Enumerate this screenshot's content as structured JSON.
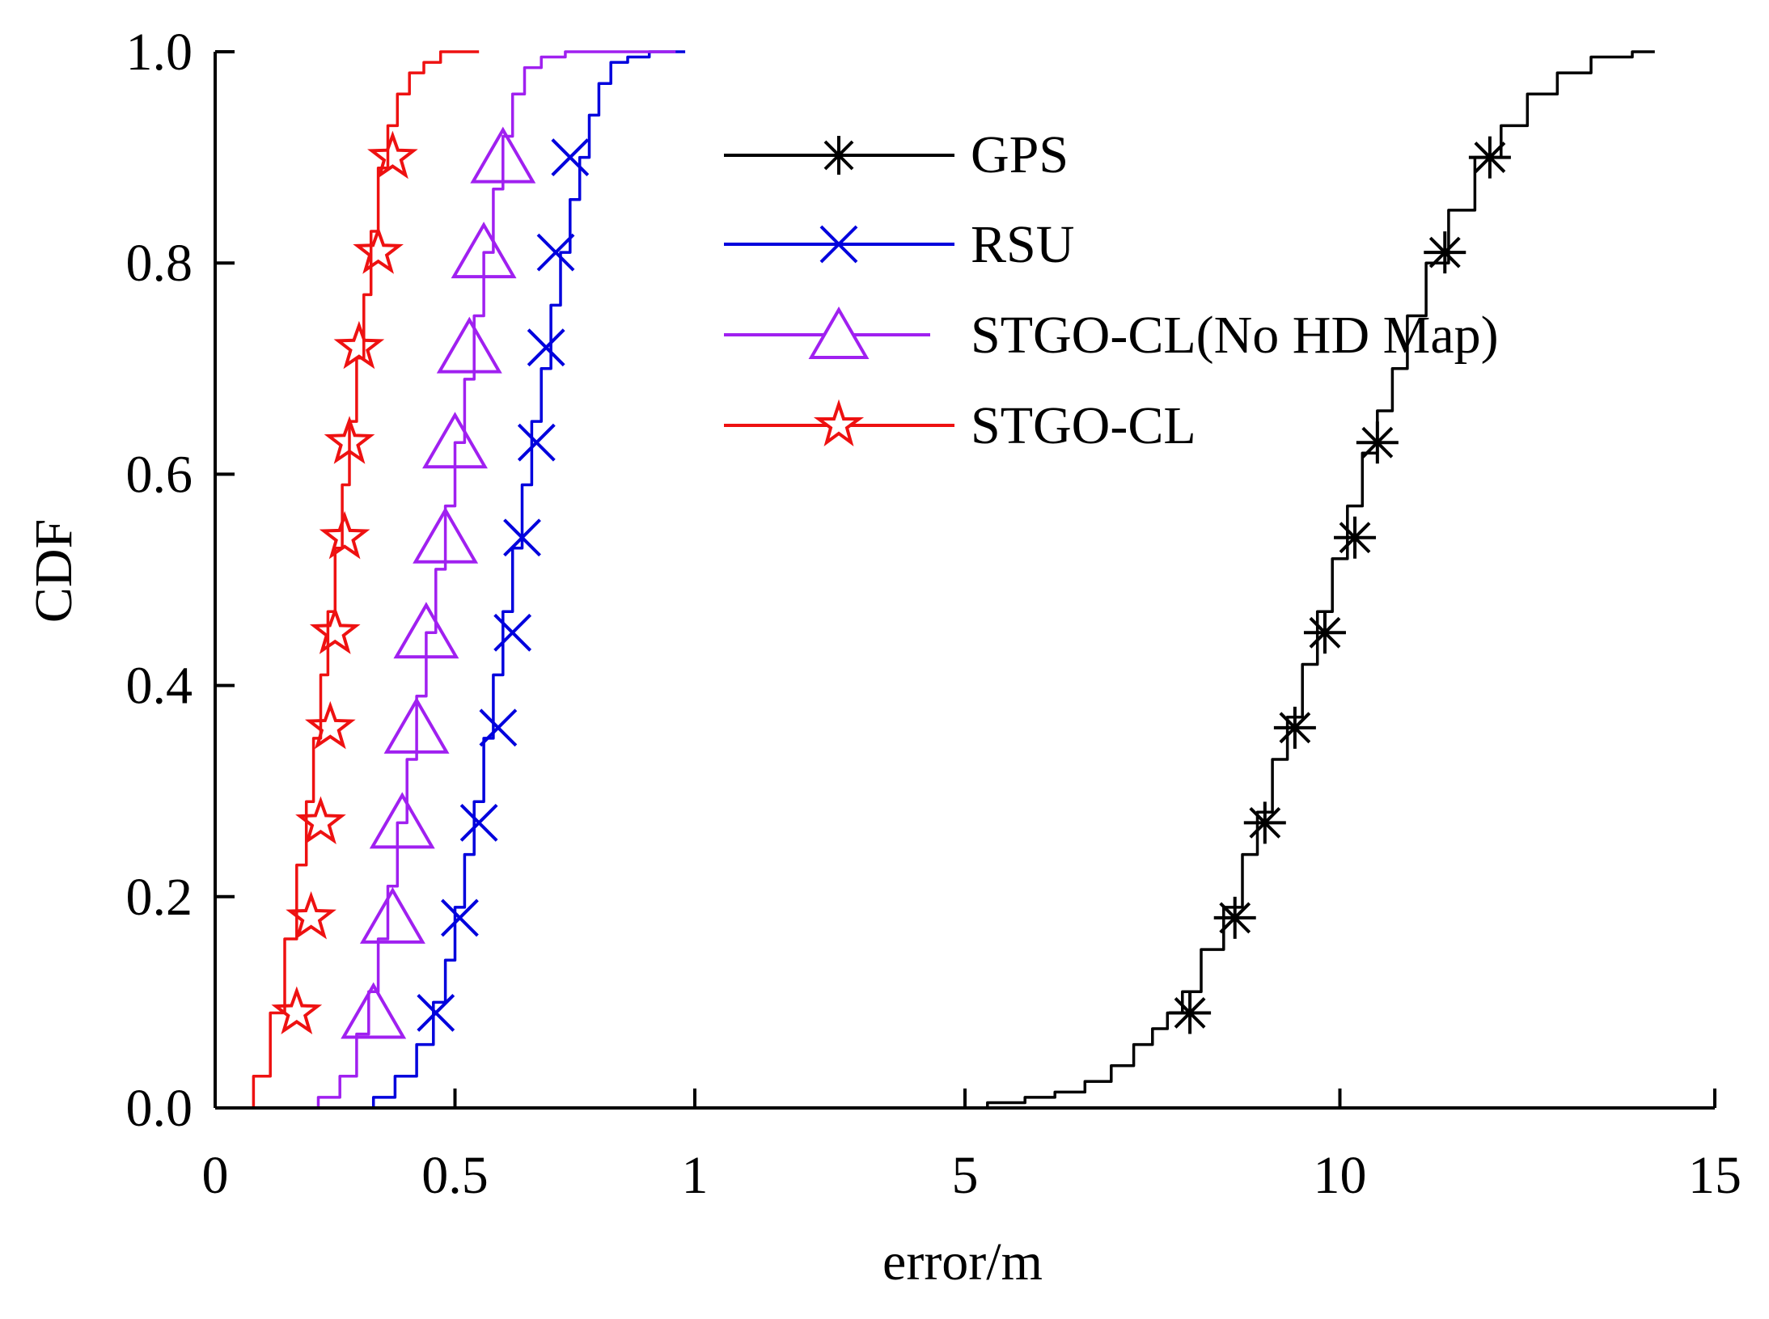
{
  "chart_data": {
    "type": "line",
    "xlabel": "error/m",
    "ylabel": "CDF",
    "x_axis": {
      "scale": "piecewise-linear",
      "segments": [
        {
          "from": 0,
          "to": 1
        },
        {
          "from": 1,
          "to": 5,
          "note": "compressed"
        },
        {
          "from": 5,
          "to": 15
        }
      ],
      "ticks": [
        0,
        0.5,
        1,
        5,
        10,
        15
      ],
      "tick_labels": [
        "0",
        "0.5",
        "1",
        "5",
        "10",
        "15"
      ]
    },
    "y_axis": {
      "range": [
        0,
        1
      ],
      "ticks": [
        0,
        0.2,
        0.4,
        0.6,
        0.8,
        1.0
      ],
      "tick_labels": [
        "0.0",
        "0.2",
        "0.4",
        "0.6",
        "0.8",
        "1.0"
      ]
    },
    "grid": false,
    "legend_position": "top-center",
    "series": [
      {
        "name": "GPS",
        "color": "#000000",
        "marker": "asterisk",
        "x": [
          5.0,
          5.6,
          6.0,
          6.4,
          6.8,
          7.1,
          7.4,
          7.6,
          7.8,
          8.0,
          8.3,
          8.6,
          8.8,
          9.0,
          9.2,
          9.4,
          9.6,
          9.8,
          10.0,
          10.2,
          10.4,
          10.6,
          10.8,
          11.0,
          11.3,
          11.6,
          12.0,
          12.3,
          12.7,
          13.1,
          13.6,
          14.2
        ],
        "y": [
          0.0,
          0.005,
          0.01,
          0.015,
          0.025,
          0.04,
          0.06,
          0.075,
          0.09,
          0.11,
          0.15,
          0.19,
          0.24,
          0.28,
          0.33,
          0.37,
          0.42,
          0.47,
          0.52,
          0.57,
          0.62,
          0.66,
          0.7,
          0.75,
          0.8,
          0.85,
          0.9,
          0.93,
          0.96,
          0.98,
          0.995,
          1.0
        ],
        "marker_x": [
          8.0,
          8.6,
          9.0,
          9.4,
          9.8,
          10.2,
          10.5,
          11.4,
          12.0
        ],
        "marker_y": [
          0.09,
          0.18,
          0.27,
          0.36,
          0.45,
          0.54,
          0.63,
          0.81,
          0.9
        ]
      },
      {
        "name": "RSU",
        "color": "#0000dd",
        "marker": "x",
        "x": [
          0.31,
          0.35,
          0.4,
          0.44,
          0.47,
          0.49,
          0.51,
          0.53,
          0.55,
          0.57,
          0.59,
          0.61,
          0.63,
          0.65,
          0.67,
          0.69,
          0.71,
          0.73,
          0.75,
          0.77,
          0.79,
          0.81,
          0.84,
          0.88,
          0.93,
          0.98
        ],
        "y": [
          0.0,
          0.01,
          0.03,
          0.06,
          0.1,
          0.14,
          0.19,
          0.24,
          0.29,
          0.35,
          0.41,
          0.47,
          0.53,
          0.59,
          0.65,
          0.7,
          0.76,
          0.81,
          0.86,
          0.9,
          0.94,
          0.97,
          0.99,
          0.995,
          1.0,
          1.0
        ],
        "marker_x": [
          0.46,
          0.51,
          0.55,
          0.59,
          0.62,
          0.64,
          0.67,
          0.69,
          0.71,
          0.74
        ],
        "marker_y": [
          0.09,
          0.18,
          0.27,
          0.36,
          0.45,
          0.54,
          0.63,
          0.72,
          0.81,
          0.9
        ]
      },
      {
        "name": "STGO-CL(No HD Map)",
        "color": "#a020f0",
        "marker": "triangle",
        "x": [
          0.19,
          0.24,
          0.28,
          0.31,
          0.33,
          0.35,
          0.37,
          0.39,
          0.41,
          0.43,
          0.45,
          0.47,
          0.49,
          0.51,
          0.53,
          0.55,
          0.57,
          0.59,
          0.61,
          0.63,
          0.66,
          0.7,
          0.76,
          0.86,
          0.96
        ],
        "y": [
          0.0,
          0.01,
          0.03,
          0.07,
          0.11,
          0.16,
          0.21,
          0.27,
          0.33,
          0.39,
          0.45,
          0.51,
          0.57,
          0.63,
          0.69,
          0.75,
          0.81,
          0.87,
          0.92,
          0.96,
          0.985,
          0.995,
          1.0,
          1.0,
          1.0
        ],
        "marker_x": [
          0.33,
          0.37,
          0.39,
          0.42,
          0.44,
          0.48,
          0.5,
          0.53,
          0.56,
          0.6
        ],
        "marker_y": [
          0.09,
          0.18,
          0.27,
          0.36,
          0.45,
          0.54,
          0.63,
          0.72,
          0.81,
          0.9
        ]
      },
      {
        "name": "STGO-CL",
        "color": "#ee1111",
        "marker": "star",
        "x": [
          0.06,
          0.1,
          0.13,
          0.16,
          0.18,
          0.2,
          0.21,
          0.23,
          0.24,
          0.26,
          0.27,
          0.29,
          0.3,
          0.32,
          0.33,
          0.35,
          0.37,
          0.39,
          0.42,
          0.45,
          0.49,
          0.55
        ],
        "y": [
          0.0,
          0.03,
          0.09,
          0.16,
          0.23,
          0.29,
          0.35,
          0.41,
          0.47,
          0.53,
          0.59,
          0.65,
          0.71,
          0.77,
          0.83,
          0.89,
          0.93,
          0.96,
          0.98,
          0.99,
          1.0,
          1.0
        ],
        "marker_x": [
          0.17,
          0.2,
          0.22,
          0.24,
          0.25,
          0.27,
          0.28,
          0.3,
          0.34,
          0.37
        ],
        "marker_y": [
          0.09,
          0.18,
          0.27,
          0.36,
          0.45,
          0.54,
          0.63,
          0.72,
          0.81,
          0.9
        ]
      }
    ]
  },
  "colors": {
    "axis": "#000000",
    "background": "#ffffff"
  }
}
